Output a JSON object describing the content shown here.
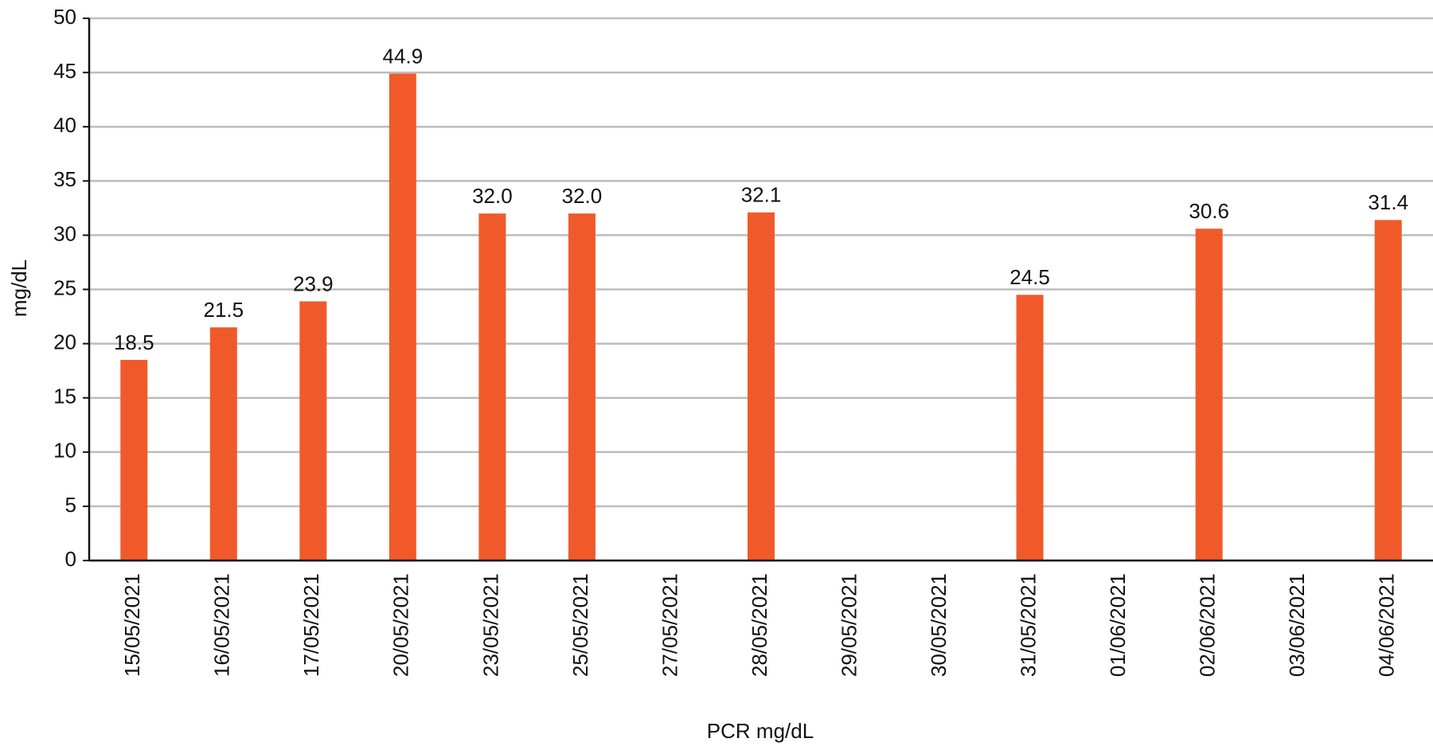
{
  "chart_data": {
    "type": "bar",
    "x_label": "PCR mg/dL",
    "y_label": "mg/dL",
    "categories": [
      "15/05/2021",
      "16/05/2021",
      "17/05/2021",
      "20/05/2021",
      "23/05/2021",
      "25/05/2021",
      "27/05/2021",
      "28/05/2021",
      "29/05/2021",
      "30/05/2021",
      "31/05/2021",
      "01/06/2021",
      "02/06/2021",
      "03/06/2021",
      "04/06/2021"
    ],
    "values": [
      18.5,
      21.5,
      23.9,
      44.9,
      32.0,
      32.0,
      null,
      32.1,
      null,
      null,
      24.5,
      null,
      30.6,
      null,
      31.4
    ],
    "value_labels": [
      "18.5",
      "21.5",
      "23.9",
      "44.9",
      "32.0",
      "32.0",
      null,
      "32.1",
      null,
      null,
      "24.5",
      null,
      "30.6",
      null,
      "31.4"
    ],
    "color": "#f05a2b",
    "ylim": [
      0,
      50
    ],
    "yticks": [
      0,
      5,
      10,
      15,
      20,
      25,
      30,
      35,
      40,
      45,
      50
    ],
    "grid": true
  }
}
